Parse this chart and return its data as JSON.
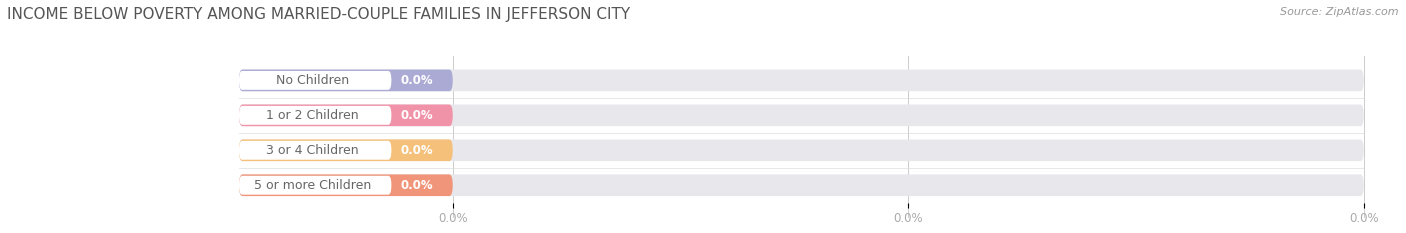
{
  "title": "INCOME BELOW POVERTY AMONG MARRIED-COUPLE FAMILIES IN JEFFERSON CITY",
  "source": "Source: ZipAtlas.com",
  "categories": [
    "No Children",
    "1 or 2 Children",
    "3 or 4 Children",
    "5 or more Children"
  ],
  "values": [
    0.0,
    0.0,
    0.0,
    0.0
  ],
  "bar_colors": [
    "#aaaad5",
    "#f093a8",
    "#f5c07a",
    "#f0957a"
  ],
  "bar_bg_color": "#e8e8ec",
  "title_color": "#555555",
  "source_color": "#999999",
  "value_label_color": "#ffffff",
  "tick_label_color": "#aaaaaa",
  "label_text_color": "#666666",
  "figsize": [
    14.06,
    2.33
  ],
  "dpi": 100,
  "background_color": "#ffffff",
  "title_fontsize": 11,
  "source_fontsize": 8,
  "label_fontsize": 9,
  "value_fontsize": 8.5,
  "tick_fontsize": 8.5
}
